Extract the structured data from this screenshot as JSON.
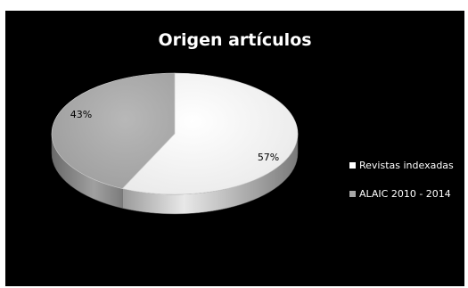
{
  "chart_data": {
    "type": "pie",
    "style": "3d",
    "title": "Origen artículos",
    "categories": [
      "Revistas indexadas",
      "ALAIC 2010 - 2014"
    ],
    "values": [
      57,
      43
    ],
    "labels": [
      "57%",
      "43%"
    ],
    "colors": [
      "#f2f2f2",
      "#a8a8a8"
    ],
    "background": "#000000",
    "legend": "right"
  }
}
